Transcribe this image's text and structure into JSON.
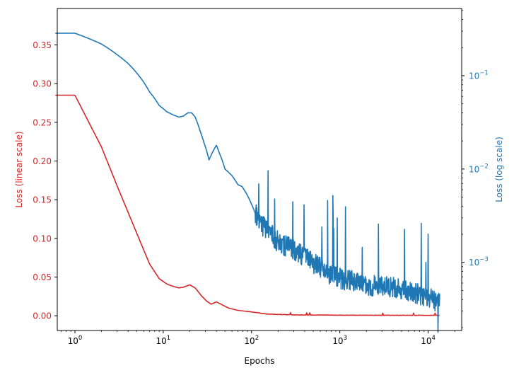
{
  "chart_data": {
    "type": "line",
    "title": "",
    "xlabel": "Epochs",
    "xscale": "log",
    "xlim_exp": [
      -0.2,
      4.38
    ],
    "x_ticks": [
      {
        "base": "10",
        "exp": "0",
        "value": 1
      },
      {
        "base": "10",
        "exp": "1",
        "value": 10
      },
      {
        "base": "10",
        "exp": "2",
        "value": 100
      },
      {
        "base": "10",
        "exp": "3",
        "value": 1000
      },
      {
        "base": "10",
        "exp": "4",
        "value": 10000
      }
    ],
    "y_left": {
      "label": "Loss (linear scale)",
      "color": "#d62728",
      "scale": "linear",
      "ylim": [
        -0.019,
        0.397
      ],
      "ticks": [
        "0.00",
        "0.05",
        "0.10",
        "0.15",
        "0.20",
        "0.25",
        "0.30",
        "0.35"
      ],
      "tick_values": [
        0.0,
        0.05,
        0.1,
        0.15,
        0.2,
        0.25,
        0.3,
        0.35
      ]
    },
    "y_right": {
      "label": "Loss (log scale)",
      "color": "#1f77b4",
      "scale": "log",
      "ylim_exp": [
        -3.73,
        -0.28
      ],
      "ticks": [
        {
          "base": "10",
          "exp": "−1",
          "value": 0.1
        },
        {
          "base": "10",
          "exp": "−2",
          "value": 0.01
        },
        {
          "base": "10",
          "exp": "−3",
          "value": 0.001
        }
      ]
    },
    "series": [
      {
        "name": "Loss (linear scale)",
        "axis": "left",
        "color": "#d62728",
        "x": [
          0.6,
          1,
          2,
          3,
          5,
          7,
          9,
          11,
          13,
          15,
          17,
          20,
          23,
          27,
          31,
          35,
          40,
          45,
          55,
          70,
          100,
          150,
          300,
          600,
          1000,
          3000,
          10000,
          13500
        ],
        "y": [
          0.285,
          0.285,
          0.218,
          0.168,
          0.107,
          0.067,
          0.048,
          0.041,
          0.038,
          0.036,
          0.037,
          0.04,
          0.036,
          0.026,
          0.019,
          0.015,
          0.018,
          0.015,
          0.01,
          0.007,
          0.005,
          0.002,
          0.001,
          0.0008,
          0.0006,
          0.0005,
          0.0004,
          0.0004
        ]
      },
      {
        "name": "Loss (log scale)",
        "axis": "right",
        "color": "#1f77b4",
        "x": [
          0.6,
          1,
          2,
          3,
          4,
          5,
          7,
          9,
          11,
          13,
          15,
          17,
          19,
          21,
          23,
          26,
          29,
          33,
          36,
          40,
          43,
          50,
          60,
          70,
          78,
          90,
          100,
          120,
          150,
          200,
          300,
          500,
          700,
          1000,
          2000,
          5000,
          10000,
          13500
        ],
        "y": [
          0.285,
          0.285,
          0.218,
          0.168,
          0.135,
          0.107,
          0.067,
          0.048,
          0.041,
          0.038,
          0.036,
          0.037,
          0.04,
          0.04,
          0.036,
          0.026,
          0.019,
          0.0125,
          0.015,
          0.018,
          0.015,
          0.01,
          0.0085,
          0.0068,
          0.0065,
          0.0052,
          0.0042,
          0.0026,
          0.0021,
          0.0016,
          0.0013,
          0.00095,
          0.00075,
          0.00065,
          0.00055,
          0.0005,
          0.0004,
          0.00035
        ]
      }
    ]
  }
}
